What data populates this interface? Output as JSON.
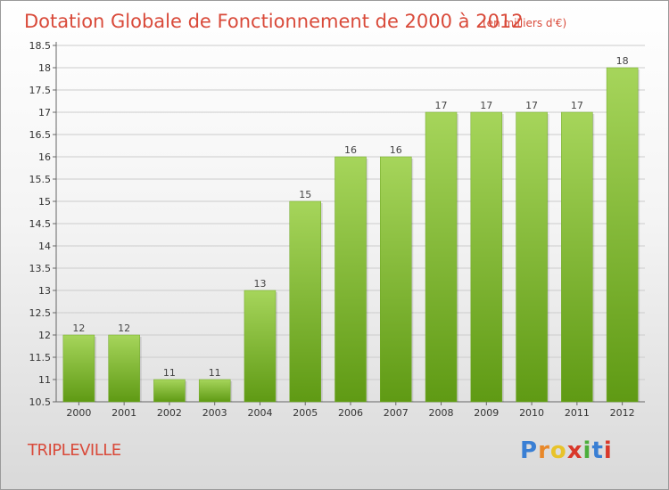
{
  "colors": {
    "title": "#d94a3a",
    "bar_light": "#a6d55b",
    "bar_dark": "#5f9a14",
    "grid": "#cccccc"
  },
  "chart_data": {
    "type": "bar",
    "title": "Dotation Globale de Fonctionnement de 2000 à 2012",
    "subtitle": "(en milliers d'€)",
    "categories": [
      "2000",
      "2001",
      "2002",
      "2003",
      "2004",
      "2005",
      "2006",
      "2007",
      "2008",
      "2009",
      "2010",
      "2011",
      "2012"
    ],
    "values": [
      12,
      12,
      11,
      11,
      13,
      15,
      16,
      16,
      17,
      17,
      17,
      17,
      18
    ],
    "value_labels": [
      "12",
      "12",
      "11",
      "11",
      "13",
      "15",
      "16",
      "16",
      "17",
      "17",
      "17",
      "17",
      "18"
    ],
    "yticks": [
      "10.5",
      "11",
      "11.5",
      "12",
      "12.5",
      "13",
      "13.5",
      "14",
      "14.5",
      "15",
      "15.5",
      "16",
      "16.5",
      "17",
      "17.5",
      "18",
      "18.5"
    ],
    "ylim": [
      10.5,
      18.5
    ],
    "grid": true
  },
  "footer": {
    "commune": "TRIPLEVILLE",
    "logo_letters": [
      "P",
      "r",
      "o",
      "x",
      "i",
      "t",
      "i"
    ],
    "logo_colors": [
      "#3a7fd4",
      "#e8882a",
      "#e8c32a",
      "#d9382a",
      "#4cae3c",
      "#3a7fd4",
      "#d9382a"
    ]
  }
}
